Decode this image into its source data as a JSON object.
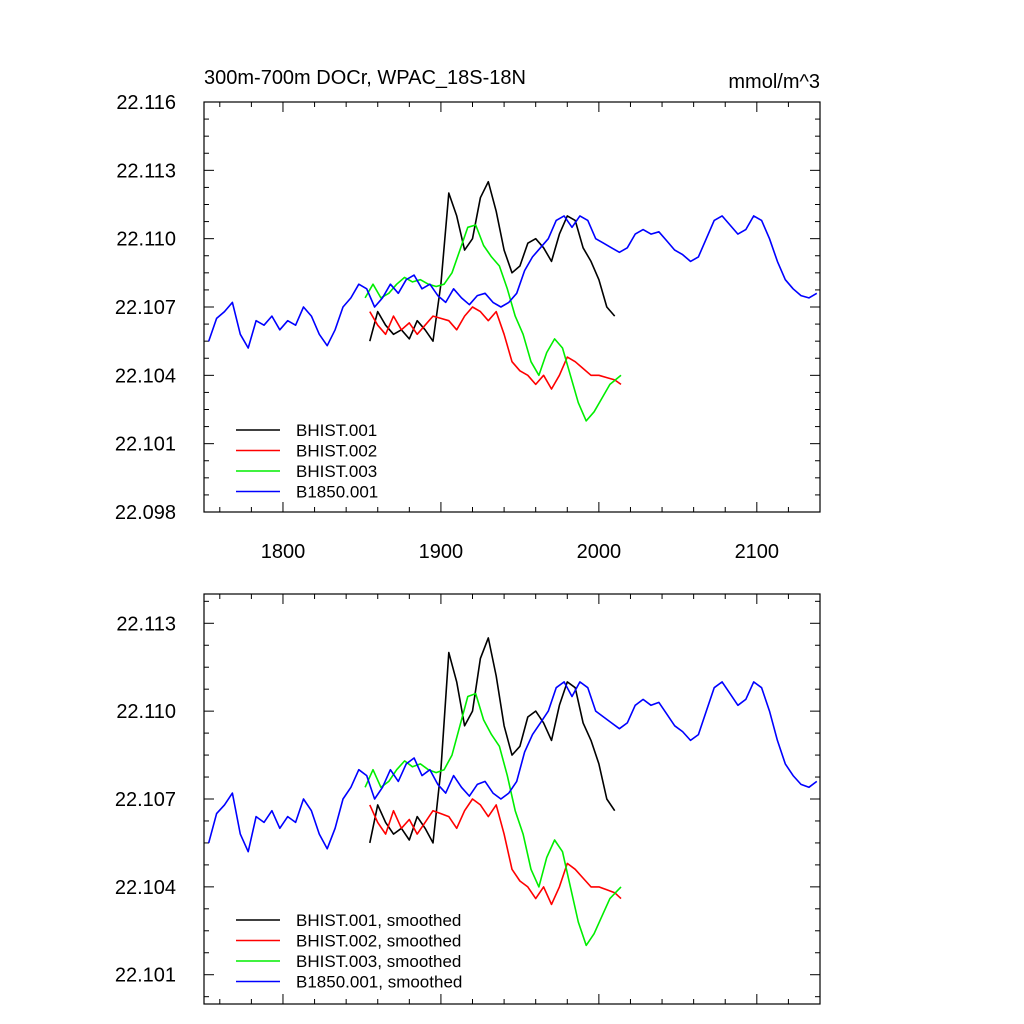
{
  "chart_data": [
    {
      "type": "line",
      "title": "300m-700m DOCr, WPAC_18S-18N",
      "units": "mmol/m^3",
      "xlim": [
        1750,
        2140
      ],
      "ylim": [
        22.098,
        22.116
      ],
      "x_ticks": [
        1800,
        1900,
        2000,
        2100
      ],
      "y_ticks": [
        22.098,
        22.101,
        22.104,
        22.107,
        22.11,
        22.113,
        22.116
      ],
      "x_tick_labels": [
        "1800",
        "1900",
        "2000",
        "2100"
      ],
      "y_tick_labels": [
        "22.098",
        "22.101",
        "22.104",
        "22.107",
        "22.110",
        "22.113",
        "22.116"
      ],
      "legend_position": "bottom-left",
      "series": [
        {
          "name": "BHIST.001",
          "color": "#000000",
          "x": [
            1855,
            1860,
            1865,
            1870,
            1875,
            1880,
            1885,
            1890,
            1895,
            1900,
            1905,
            1910,
            1915,
            1920,
            1925,
            1930,
            1935,
            1940,
            1945,
            1950,
            1955,
            1960,
            1965,
            1970,
            1975,
            1980,
            1985,
            1990,
            1995,
            2000,
            2005,
            2010
          ],
          "y": [
            22.1055,
            22.1068,
            22.1062,
            22.1058,
            22.106,
            22.1056,
            22.1064,
            22.106,
            22.1055,
            22.108,
            22.112,
            22.111,
            22.1095,
            22.11,
            22.1118,
            22.1125,
            22.1112,
            22.1095,
            22.1085,
            22.1088,
            22.1098,
            22.11,
            22.1096,
            22.109,
            22.1102,
            22.111,
            22.1108,
            22.1096,
            22.109,
            22.1082,
            22.107,
            22.1066
          ]
        },
        {
          "name": "BHIST.002",
          "color": "#ff0000",
          "x": [
            1855,
            1860,
            1865,
            1870,
            1875,
            1880,
            1885,
            1890,
            1895,
            1900,
            1905,
            1910,
            1915,
            1920,
            1925,
            1930,
            1935,
            1940,
            1945,
            1950,
            1955,
            1960,
            1965,
            1970,
            1975,
            1980,
            1985,
            1990,
            1995,
            2000,
            2005,
            2010,
            2014
          ],
          "y": [
            22.1068,
            22.1062,
            22.1058,
            22.1066,
            22.106,
            22.1063,
            22.1058,
            22.1062,
            22.1066,
            22.1065,
            22.1064,
            22.106,
            22.1066,
            22.107,
            22.1068,
            22.1064,
            22.1068,
            22.1058,
            22.1046,
            22.1042,
            22.104,
            22.1036,
            22.104,
            22.1034,
            22.104,
            22.1048,
            22.1046,
            22.1043,
            22.104,
            22.104,
            22.1039,
            22.1038,
            22.1036
          ]
        },
        {
          "name": "BHIST.003",
          "color": "#00ee00",
          "x": [
            1852,
            1857,
            1862,
            1867,
            1872,
            1877,
            1882,
            1887,
            1892,
            1897,
            1902,
            1907,
            1912,
            1917,
            1922,
            1927,
            1932,
            1937,
            1942,
            1947,
            1952,
            1957,
            1962,
            1967,
            1972,
            1977,
            1982,
            1987,
            1992,
            1997,
            2002,
            2007,
            2014
          ],
          "y": [
            22.1074,
            22.108,
            22.1074,
            22.1076,
            22.108,
            22.1083,
            22.1081,
            22.1082,
            22.108,
            22.1079,
            22.108,
            22.1085,
            22.1095,
            22.1105,
            22.1106,
            22.1097,
            22.1092,
            22.1088,
            22.1078,
            22.1066,
            22.1058,
            22.1046,
            22.104,
            22.105,
            22.1056,
            22.1052,
            22.104,
            22.1028,
            22.102,
            22.1024,
            22.103,
            22.1036,
            22.104
          ]
        },
        {
          "name": "B1850.001",
          "color": "#0000ff",
          "x": [
            1753,
            1758,
            1763,
            1768,
            1773,
            1778,
            1783,
            1788,
            1793,
            1798,
            1803,
            1808,
            1813,
            1818,
            1823,
            1828,
            1833,
            1838,
            1843,
            1848,
            1853,
            1858,
            1863,
            1868,
            1873,
            1878,
            1883,
            1888,
            1893,
            1898,
            1903,
            1908,
            1913,
            1918,
            1923,
            1928,
            1933,
            1938,
            1943,
            1948,
            1953,
            1958,
            1963,
            1968,
            1973,
            1978,
            1983,
            1988,
            1993,
            1998,
            2003,
            2008,
            2013,
            2018,
            2023,
            2028,
            2033,
            2038,
            2043,
            2048,
            2053,
            2058,
            2063,
            2068,
            2073,
            2078,
            2083,
            2088,
            2093,
            2098,
            2103,
            2108,
            2113,
            2118,
            2123,
            2128,
            2133,
            2138
          ],
          "y": [
            22.1055,
            22.1065,
            22.1068,
            22.1072,
            22.1058,
            22.1052,
            22.1064,
            22.1062,
            22.1066,
            22.106,
            22.1064,
            22.1062,
            22.107,
            22.1066,
            22.1058,
            22.1053,
            22.106,
            22.107,
            22.1074,
            22.108,
            22.1078,
            22.107,
            22.1074,
            22.108,
            22.1076,
            22.1082,
            22.1084,
            22.1078,
            22.108,
            22.1075,
            22.1072,
            22.1078,
            22.1074,
            22.1071,
            22.1075,
            22.1076,
            22.1072,
            22.107,
            22.1072,
            22.1076,
            22.1086,
            22.1092,
            22.1096,
            22.11,
            22.1108,
            22.111,
            22.1105,
            22.111,
            22.1108,
            22.11,
            22.1098,
            22.1096,
            22.1094,
            22.1096,
            22.1102,
            22.1104,
            22.1102,
            22.1103,
            22.1099,
            22.1095,
            22.1093,
            22.109,
            22.1092,
            22.11,
            22.1108,
            22.111,
            22.1106,
            22.1102,
            22.1104,
            22.111,
            22.1108,
            22.11,
            22.109,
            22.1082,
            22.1078,
            22.1075,
            22.1074,
            22.1076
          ]
        }
      ]
    },
    {
      "type": "line",
      "xlim": [
        1750,
        2140
      ],
      "ylim": [
        22.1,
        22.114
      ],
      "x_ticks": [
        1800,
        1900,
        2000,
        2100
      ],
      "y_ticks": [
        22.101,
        22.104,
        22.107,
        22.11,
        22.113
      ],
      "y_tick_labels": [
        "22.101",
        "22.104",
        "22.107",
        "22.110",
        "22.113"
      ],
      "legend_position": "bottom-left",
      "series": [
        {
          "name": "BHIST.001, smoothed",
          "color": "#000000",
          "x": [
            1855,
            1860,
            1865,
            1870,
            1875,
            1880,
            1885,
            1890,
            1895,
            1900,
            1905,
            1910,
            1915,
            1920,
            1925,
            1930,
            1935,
            1940,
            1945,
            1950,
            1955,
            1960,
            1965,
            1970,
            1975,
            1980,
            1985,
            1990,
            1995,
            2000,
            2005,
            2010
          ],
          "y": [
            22.1055,
            22.1068,
            22.1062,
            22.1058,
            22.106,
            22.1056,
            22.1064,
            22.106,
            22.1055,
            22.108,
            22.112,
            22.111,
            22.1095,
            22.11,
            22.1118,
            22.1125,
            22.1112,
            22.1095,
            22.1085,
            22.1088,
            22.1098,
            22.11,
            22.1096,
            22.109,
            22.1102,
            22.111,
            22.1108,
            22.1096,
            22.109,
            22.1082,
            22.107,
            22.1066
          ]
        },
        {
          "name": "BHIST.002, smoothed",
          "color": "#ff0000",
          "x": [
            1855,
            1860,
            1865,
            1870,
            1875,
            1880,
            1885,
            1890,
            1895,
            1900,
            1905,
            1910,
            1915,
            1920,
            1925,
            1930,
            1935,
            1940,
            1945,
            1950,
            1955,
            1960,
            1965,
            1970,
            1975,
            1980,
            1985,
            1990,
            1995,
            2000,
            2005,
            2010,
            2014
          ],
          "y": [
            22.1068,
            22.1062,
            22.1058,
            22.1066,
            22.106,
            22.1063,
            22.1058,
            22.1062,
            22.1066,
            22.1065,
            22.1064,
            22.106,
            22.1066,
            22.107,
            22.1068,
            22.1064,
            22.1068,
            22.1058,
            22.1046,
            22.1042,
            22.104,
            22.1036,
            22.104,
            22.1034,
            22.104,
            22.1048,
            22.1046,
            22.1043,
            22.104,
            22.104,
            22.1039,
            22.1038,
            22.1036
          ]
        },
        {
          "name": "BHIST.003, smoothed",
          "color": "#00ee00",
          "x": [
            1852,
            1857,
            1862,
            1867,
            1872,
            1877,
            1882,
            1887,
            1892,
            1897,
            1902,
            1907,
            1912,
            1917,
            1922,
            1927,
            1932,
            1937,
            1942,
            1947,
            1952,
            1957,
            1962,
            1967,
            1972,
            1977,
            1982,
            1987,
            1992,
            1997,
            2002,
            2007,
            2014
          ],
          "y": [
            22.1074,
            22.108,
            22.1074,
            22.1076,
            22.108,
            22.1083,
            22.1081,
            22.1082,
            22.108,
            22.1079,
            22.108,
            22.1085,
            22.1095,
            22.1105,
            22.1106,
            22.1097,
            22.1092,
            22.1088,
            22.1078,
            22.1066,
            22.1058,
            22.1046,
            22.104,
            22.105,
            22.1056,
            22.1052,
            22.104,
            22.1028,
            22.102,
            22.1024,
            22.103,
            22.1036,
            22.104
          ]
        },
        {
          "name": "B1850.001, smoothed",
          "color": "#0000ff",
          "x": [
            1753,
            1758,
            1763,
            1768,
            1773,
            1778,
            1783,
            1788,
            1793,
            1798,
            1803,
            1808,
            1813,
            1818,
            1823,
            1828,
            1833,
            1838,
            1843,
            1848,
            1853,
            1858,
            1863,
            1868,
            1873,
            1878,
            1883,
            1888,
            1893,
            1898,
            1903,
            1908,
            1913,
            1918,
            1923,
            1928,
            1933,
            1938,
            1943,
            1948,
            1953,
            1958,
            1963,
            1968,
            1973,
            1978,
            1983,
            1988,
            1993,
            1998,
            2003,
            2008,
            2013,
            2018,
            2023,
            2028,
            2033,
            2038,
            2043,
            2048,
            2053,
            2058,
            2063,
            2068,
            2073,
            2078,
            2083,
            2088,
            2093,
            2098,
            2103,
            2108,
            2113,
            2118,
            2123,
            2128,
            2133,
            2138
          ],
          "y": [
            22.1055,
            22.1065,
            22.1068,
            22.1072,
            22.1058,
            22.1052,
            22.1064,
            22.1062,
            22.1066,
            22.106,
            22.1064,
            22.1062,
            22.107,
            22.1066,
            22.1058,
            22.1053,
            22.106,
            22.107,
            22.1074,
            22.108,
            22.1078,
            22.107,
            22.1074,
            22.108,
            22.1076,
            22.1082,
            22.1084,
            22.1078,
            22.108,
            22.1075,
            22.1072,
            22.1078,
            22.1074,
            22.1071,
            22.1075,
            22.1076,
            22.1072,
            22.107,
            22.1072,
            22.1076,
            22.1086,
            22.1092,
            22.1096,
            22.11,
            22.1108,
            22.111,
            22.1105,
            22.111,
            22.1108,
            22.11,
            22.1098,
            22.1096,
            22.1094,
            22.1096,
            22.1102,
            22.1104,
            22.1102,
            22.1103,
            22.1099,
            22.1095,
            22.1093,
            22.109,
            22.1092,
            22.11,
            22.1108,
            22.111,
            22.1106,
            22.1102,
            22.1104,
            22.111,
            22.1108,
            22.11,
            22.109,
            22.1082,
            22.1078,
            22.1075,
            22.1074,
            22.1076
          ]
        }
      ]
    }
  ]
}
